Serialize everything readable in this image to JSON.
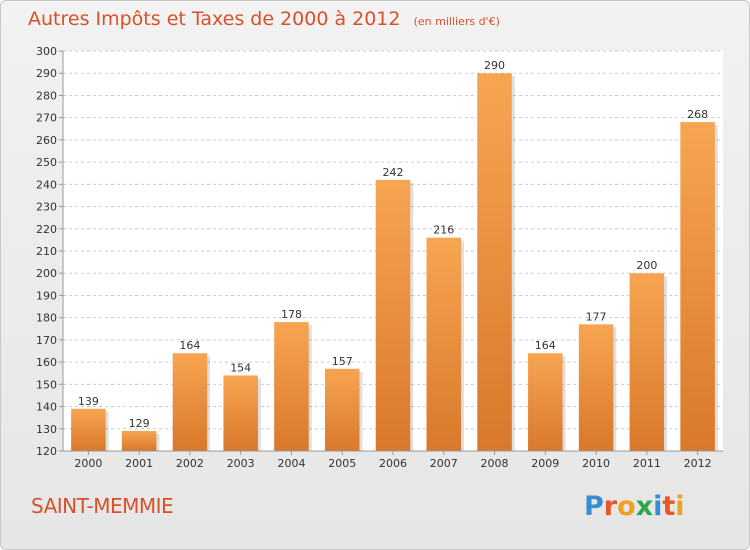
{
  "header": {
    "title": "Autres Impôts et Taxes de 2000 à 2012",
    "subtitle": "(en milliers d'€)"
  },
  "footer": {
    "commune": "SAINT-MEMMIE",
    "logo_letters": [
      "P",
      "r",
      "o",
      "x",
      "i",
      "t",
      "i"
    ],
    "logo_colors": [
      "#3a8ed0",
      "#e8572a",
      "#f0a020",
      "#2aa84a",
      "#3a8ed0",
      "#e8572a",
      "#f0a020"
    ]
  },
  "colors": {
    "bar_light": "#f7a552",
    "bar_dark": "#d9782a",
    "text_accent": "#d8512a",
    "grid": "#cccccc"
  },
  "chart_data": {
    "type": "bar",
    "categories": [
      "2000",
      "2001",
      "2002",
      "2003",
      "2004",
      "2005",
      "2006",
      "2007",
      "2008",
      "2009",
      "2010",
      "2011",
      "2012"
    ],
    "values": [
      139,
      129,
      164,
      154,
      178,
      157,
      242,
      216,
      290,
      164,
      177,
      200,
      268
    ],
    "title": "Autres Impôts et Taxes de 2000 à 2012",
    "subtitle": "(en milliers d'€)",
    "ylim": [
      120,
      300
    ],
    "yticks": [
      120,
      130,
      140,
      150,
      160,
      170,
      180,
      190,
      200,
      210,
      220,
      230,
      240,
      250,
      260,
      270,
      280,
      290,
      300
    ],
    "grid": true,
    "data_labels": true
  }
}
